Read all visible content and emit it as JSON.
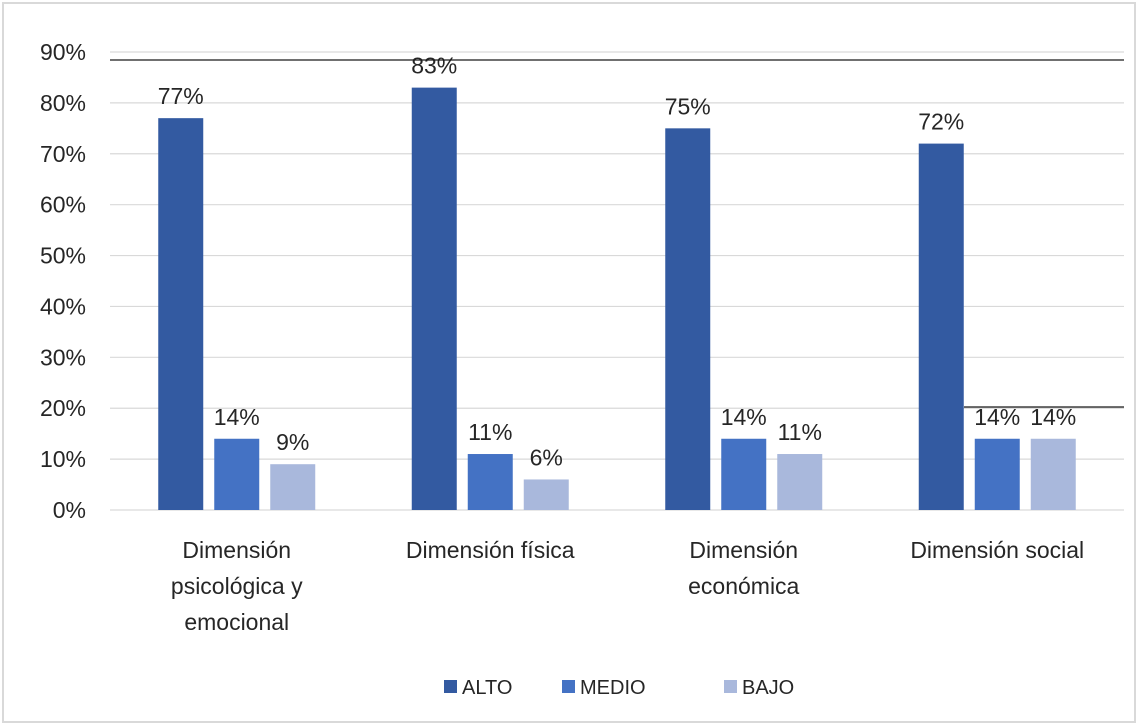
{
  "chart_data": {
    "type": "bar",
    "categories": [
      [
        "Dimensión",
        "psicológica y",
        "emocional"
      ],
      [
        "Dimensión física"
      ],
      [
        "Dimensión",
        "económica"
      ],
      [
        "Dimensión social"
      ]
    ],
    "series": [
      {
        "name": "ALTO",
        "color": "#335aa1",
        "values": [
          77,
          83,
          75,
          72
        ],
        "labels": [
          "77%",
          "83%",
          "75%",
          "72%"
        ]
      },
      {
        "name": "MEDIO",
        "color": "#4472c4",
        "values": [
          14,
          11,
          14,
          14
        ],
        "labels": [
          "14%",
          "11%",
          "14%",
          "14%"
        ]
      },
      {
        "name": "BAJO",
        "color": "#a9b8dc",
        "values": [
          9,
          6,
          11,
          14
        ],
        "labels": [
          "9%",
          "6%",
          "11%",
          "14%"
        ]
      }
    ],
    "ylim": [
      0,
      90
    ],
    "yticks": [
      0,
      10,
      20,
      30,
      40,
      50,
      60,
      70,
      80,
      90
    ],
    "ytick_labels": [
      "0%",
      "10%",
      "20%",
      "30%",
      "40%",
      "50%",
      "60%",
      "70%",
      "80%",
      "90%"
    ],
    "grid": true,
    "legend_position": "bottom",
    "title": "",
    "xlabel": "",
    "ylabel": ""
  }
}
